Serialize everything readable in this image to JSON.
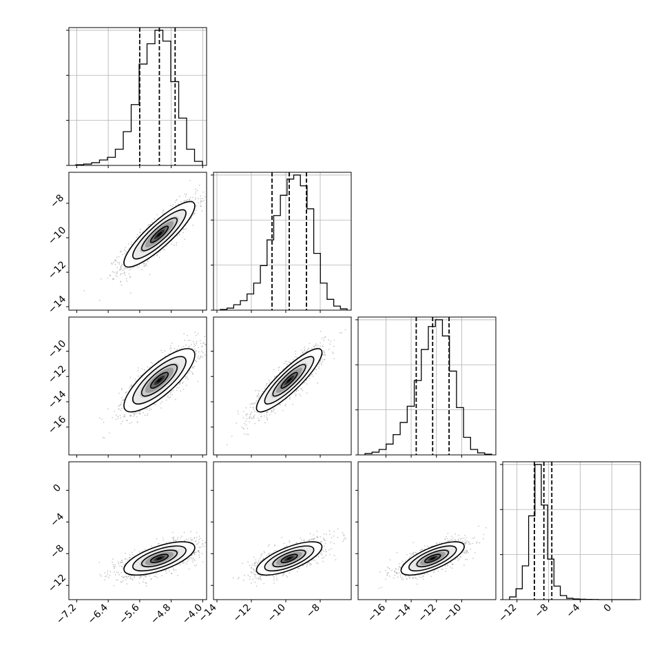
{
  "chart_data": {
    "type": "corner",
    "title": "",
    "n_params": 4,
    "colors": {
      "foreground": "#000000",
      "background": "#ffffff",
      "grid": "#b0b0b0",
      "scatter": "#9a9a9a"
    },
    "grid": true,
    "params": [
      {
        "index": 0,
        "label": "",
        "range": [
          -7.4,
          -3.9
        ],
        "ticks": [
          -7.2,
          -6.4,
          -5.6,
          -4.8,
          -4.0
        ],
        "tick_labels": [
          "−7.2",
          "−6.4",
          "−5.6",
          "−4.8",
          "−4.0"
        ],
        "quantiles": [
          -5.6,
          -5.1,
          -4.7
        ],
        "hist_bins": [
          0.005,
          0.01,
          0.02,
          0.04,
          0.06,
          0.12,
          0.25,
          0.45,
          0.75,
          0.9,
          1.0,
          0.92,
          0.62,
          0.35,
          0.12,
          0.03
        ]
      },
      {
        "index": 1,
        "label": "",
        "range": [
          -14.2,
          -6.2
        ],
        "ticks": [
          -14,
          -12,
          -10,
          -8
        ],
        "tick_labels": [
          "−14",
          "−12",
          "−10",
          "−8"
        ],
        "quantiles": [
          -10.8,
          -9.8,
          -8.8
        ],
        "hist_bins": [
          0.005,
          0.015,
          0.04,
          0.07,
          0.12,
          0.2,
          0.33,
          0.52,
          0.7,
          0.85,
          0.97,
          1.0,
          0.92,
          0.75,
          0.42,
          0.2,
          0.08,
          0.03,
          0.01
        ]
      },
      {
        "index": 2,
        "label": "",
        "range": [
          -18.2,
          -7.3
        ],
        "ticks": [
          -16,
          -14,
          -12,
          -10
        ],
        "tick_labels": [
          "−16",
          "−14",
          "−12",
          "−10"
        ],
        "quantiles": [
          -13.6,
          -12.3,
          -11.0
        ],
        "hist_bins": [
          0.01,
          0.02,
          0.04,
          0.08,
          0.15,
          0.24,
          0.36,
          0.55,
          0.78,
          0.95,
          1.0,
          0.88,
          0.62,
          0.35,
          0.13,
          0.04,
          0.015,
          0.005
        ]
      },
      {
        "index": 3,
        "label": "",
        "range": [
          -13.8,
          3.6
        ],
        "ticks": [
          -12,
          -8,
          -4,
          0
        ],
        "tick_labels": [
          "−12",
          "−8",
          "−4",
          "0"
        ],
        "quantiles": [
          -9.8,
          -8.6,
          -7.6
        ],
        "hist_bins": [
          0.02,
          0.08,
          0.25,
          0.62,
          1.0,
          0.7,
          0.3,
          0.1,
          0.03,
          0.01,
          0.005,
          0.003,
          0.002,
          0.001,
          0.0,
          0.0,
          0.0,
          0.0,
          0.0,
          0.0
        ]
      }
    ],
    "hist_ticks_y_fraction": [
      0.0,
      0.3333,
      0.6667,
      1.0
    ],
    "hist_ylim_fraction": [
      0,
      1.02
    ],
    "pairs": [
      {
        "row": 1,
        "col": 0,
        "mean": [
          -5.1,
          -9.8
        ],
        "sd": [
          0.45,
          0.95
        ],
        "corr": 0.87
      },
      {
        "row": 2,
        "col": 0,
        "mean": [
          -5.1,
          -12.3
        ],
        "sd": [
          0.45,
          1.25
        ],
        "corr": 0.8
      },
      {
        "row": 2,
        "col": 1,
        "mean": [
          -9.8,
          -12.3
        ],
        "sd": [
          0.95,
          1.25
        ],
        "corr": 0.88
      },
      {
        "row": 3,
        "col": 0,
        "mean": [
          -5.1,
          -8.6
        ],
        "sd": [
          0.45,
          1.05
        ],
        "corr": 0.65
      },
      {
        "row": 3,
        "col": 1,
        "mean": [
          -9.8,
          -8.6
        ],
        "sd": [
          0.95,
          1.05
        ],
        "corr": 0.7
      },
      {
        "row": 3,
        "col": 2,
        "mean": [
          -12.3,
          -8.6
        ],
        "sd": [
          1.25,
          1.05
        ],
        "corr": 0.72
      }
    ],
    "contour_levels_sigma": [
      0.5,
      1.0,
      1.5,
      2.0
    ]
  }
}
